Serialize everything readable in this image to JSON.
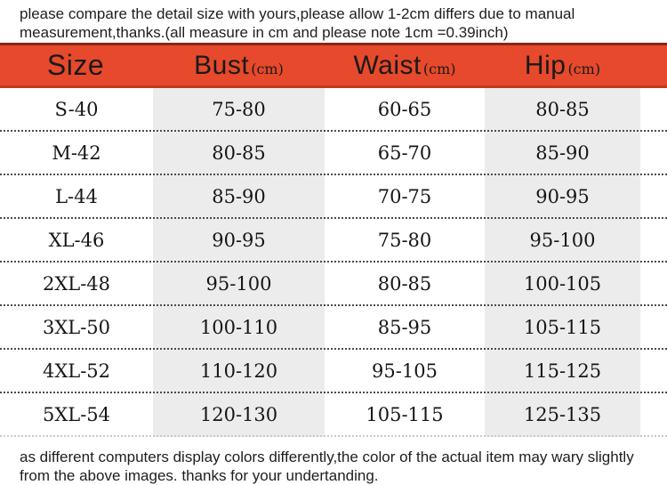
{
  "notices": {
    "top_lines": [
      "please compare the detail size with yours,please allow 1-2cm differs due to manual",
      "measurement,thanks.(all measure in cm and please note 1cm =0.39inch)"
    ],
    "bottom_lines": [
      "as different computers display colors differently,the color of the actual item may wary slightly",
      "from the above images. thanks for your undertanding."
    ]
  },
  "size_chart": {
    "columns": [
      {
        "label": "Size",
        "unit": ""
      },
      {
        "label": "Bust",
        "unit": "(cm)"
      },
      {
        "label": "Waist",
        "unit": "(cm)"
      },
      {
        "label": "Hip",
        "unit": "(cm)"
      }
    ],
    "rows": [
      {
        "size": "S-40",
        "bust": "75-80",
        "waist": "60-65",
        "hip": "80-85"
      },
      {
        "size": "M-42",
        "bust": "80-85",
        "waist": "65-70",
        "hip": "85-90"
      },
      {
        "size": "L-44",
        "bust": "85-90",
        "waist": "70-75",
        "hip": "90-95"
      },
      {
        "size": "XL-46",
        "bust": "90-95",
        "waist": "75-80",
        "hip": "95-100"
      },
      {
        "size": "2XL-48",
        "bust": "95-100",
        "waist": "80-85",
        "hip": "100-105"
      },
      {
        "size": "3XL-50",
        "bust": "100-110",
        "waist": "85-95",
        "hip": "105-115"
      },
      {
        "size": "4XL-52",
        "bust": "110-120",
        "waist": "95-105",
        "hip": "115-125"
      },
      {
        "size": "5XL-54",
        "bust": "120-130",
        "waist": "105-115",
        "hip": "125-135"
      }
    ]
  },
  "colors": {
    "header_background": "#e6492b",
    "header_top_edge": "#8c2617",
    "header_bottom_edge": "#c23a1c",
    "column_stripe": "#ececec",
    "row_separator_dots": "#4b4b4b",
    "text": "#1b1b1b"
  }
}
